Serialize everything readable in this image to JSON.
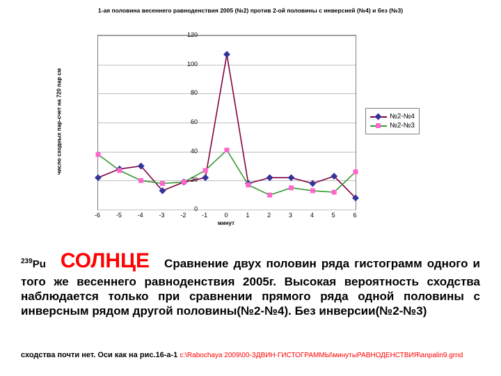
{
  "chart": {
    "type": "line",
    "title": "1-ая половина весеннего равноденствия 2005 (№2) против 2-ой половины с инверсией (№4) и без (№3)",
    "x_label": "минут",
    "y_label": "число сходных пар-счет на 720 пар см",
    "x_ticks": [
      -6,
      -5,
      -4,
      -3,
      -2,
      -1,
      0,
      1,
      2,
      3,
      4,
      5,
      6
    ],
    "y_ticks": [
      0,
      20,
      40,
      60,
      80,
      100,
      120
    ],
    "ylim": [
      0,
      120
    ],
    "xlim": [
      -6,
      6
    ],
    "grid_color": "#c0c0c0",
    "border_color": "#7f7f7f",
    "background_color": "#ffffff",
    "title_fontsize": 8.5,
    "axis_label_fontsize": 8,
    "tick_fontsize": 9,
    "line_width": 1.6,
    "marker_size": 7,
    "series": [
      {
        "name": "№2-№4",
        "color": "#800040",
        "marker": "diamond",
        "marker_color": "#333399",
        "x": [
          -6,
          -5,
          -4,
          -3,
          -2,
          -1,
          0,
          1,
          2,
          3,
          4,
          5,
          6
        ],
        "y": [
          22,
          28,
          30,
          13,
          19,
          22,
          107,
          18,
          22,
          22,
          18,
          23,
          8
        ]
      },
      {
        "name": "№2-№3",
        "color": "#339933",
        "marker": "square",
        "marker_color": "#ff66cc",
        "x": [
          -6,
          -5,
          -4,
          -3,
          -2,
          -1,
          0,
          1,
          2,
          3,
          4,
          5,
          6
        ],
        "y": [
          38,
          27,
          20,
          18,
          19,
          27,
          41,
          17,
          10,
          15,
          13,
          12,
          26
        ]
      }
    ],
    "legend_position": "right"
  },
  "caption": {
    "pu": "239Pu",
    "sun": "СОЛНЦЕ",
    "body": "Сравнение двух половин ряда гистограмм одного и того же весеннего равноденствия 2005г. Высокая вероятность сходства наблюдается только при сравнении прямого ряда  одной половины с инверсным рядом другой половины(№2-№4). Без инверсии(№2-№3)"
  },
  "footnote": {
    "lead": "сходства почти нет. Оси как на рис.16-а-1 ",
    "path": "c:\\Rabochaya 2009\\00-ЗДВИН-ГИСТОГРАММЫ\\минутыРАВНОДЕНСТВИЯ\\anpalin9.grnd"
  }
}
